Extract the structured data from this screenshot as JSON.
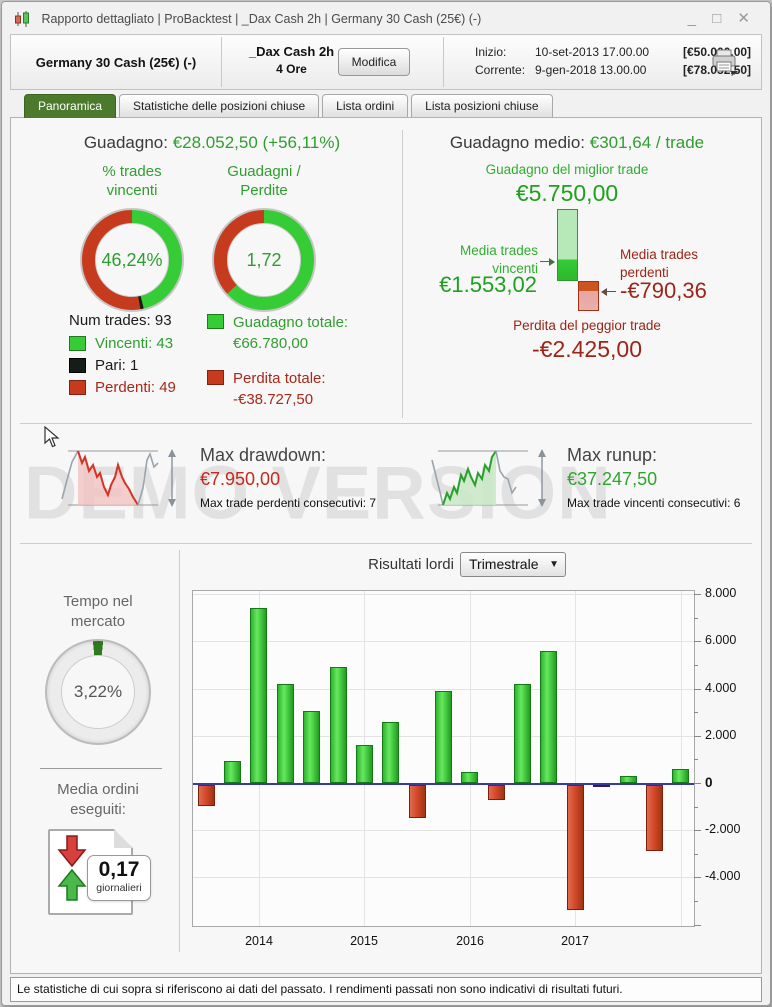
{
  "window": {
    "title": "Rapporto dettagliato  |  ProBacktest  |  _Dax Cash 2h  |  Germany 30 Cash (25€) (-)",
    "minimize": "_",
    "maximize": "□",
    "close": "✕"
  },
  "header": {
    "instrument": "Germany 30 Cash (25€) (-)",
    "system_name": "_Dax Cash 2h",
    "timeframe": "4 Ore",
    "modify_label": "Modifica",
    "inizio_label": "Inizio:",
    "inizio_date": "10-set-2013 17.00.00",
    "inizio_value": "[€50.000,00]",
    "corrente_label": "Corrente:",
    "corrente_date": "9-gen-2018 13.00.00",
    "corrente_value": "[€78.052,50]",
    "printer_icon": "printer-icon"
  },
  "tabs": [
    {
      "label": "Panoramica",
      "active": true
    },
    {
      "label": "Statistiche delle posizioni chiuse",
      "active": false
    },
    {
      "label": "Lista ordini",
      "active": false
    },
    {
      "label": "Lista posizioni chiuse",
      "active": false
    }
  ],
  "overview": {
    "gain_label": "Guadagno:",
    "gain_value": "€28.052,50 (+56,11%)",
    "donut_win": {
      "title_line1": "% trades",
      "title_line2": "vincenti",
      "value": "46,24%",
      "start_deg": 0,
      "segments": [
        [
          "#35cc35",
          46.24
        ],
        [
          "#161d16",
          1.08
        ],
        [
          "#c63a1e",
          52.68
        ]
      ]
    },
    "donut_ratio": {
      "title_line1": "Guadagni /",
      "title_line2": "Perdite",
      "value": "1,72",
      "start_deg": 0,
      "segments": [
        [
          "#35cc35",
          63.2
        ],
        [
          "#c63a1e",
          36.8
        ]
      ]
    },
    "num_trades": "Num trades: 93",
    "legend": [
      {
        "label": "Vincenti: 43",
        "color": "#35cc35"
      },
      {
        "label": "Pari: 1",
        "color": "#161d16"
      },
      {
        "label": "Perdenti: 49",
        "color": "#c63a1d"
      }
    ],
    "totals": [
      {
        "label": "Guadagno totale:",
        "value": "€66.780,00",
        "color": "#2f9e2f"
      },
      {
        "label": "Perdita totale:",
        "value": "-€38.727,50",
        "color": "#a8281a"
      }
    ]
  },
  "avg_panel": {
    "title_label": "Guadagno medio:",
    "title_value": "€301,64 / trade",
    "best_label": "Guadagno del miglior trade",
    "best_value": "€5.750,00",
    "avg_win_label_line1": "Media trades",
    "avg_win_label_line2": "vincenti",
    "avg_win_value": "€1.553,02",
    "avg_loss_label_line1": "Media trades",
    "avg_loss_label_line2": "perdenti",
    "avg_loss_value": "-€790,36",
    "worst_label": "Perdita del peggior trade",
    "worst_value": "-€2.425,00"
  },
  "drawdown": {
    "label": "Max drawdown:",
    "value": "€7.950,00",
    "sub": "Max trade perdenti consecutivi:  7"
  },
  "runup": {
    "label": "Max runup:",
    "value": "€37.247,50",
    "sub": "Max trade vincenti consecutivi: 6"
  },
  "watermark": "DEMO VERSION",
  "time_in_market": {
    "title_line1": "Tempo nel",
    "title_line2": "mercato",
    "value": "3,22%",
    "start_deg": 354.2,
    "segments": [
      [
        "#2e7a1e",
        3.22
      ],
      [
        "#ececec",
        96.78
      ]
    ]
  },
  "avg_orders": {
    "title_line1": "Media ordini",
    "title_line2": "eseguiti:",
    "value": "0,17",
    "unit": "giornalieri"
  },
  "results": {
    "label": "Risultati lordi",
    "dropdown_value": "Trimestrale",
    "dropdown_arrow": "▼"
  },
  "chart_data": {
    "type": "bar",
    "title": "Risultati lordi (Trimestrale)",
    "x": [
      "2013-T3",
      "2013-T4",
      "2014-T1",
      "2014-T2",
      "2014-T3",
      "2014-T4",
      "2015-T1",
      "2015-T2",
      "2015-T3",
      "2015-T4",
      "2016-T1",
      "2016-T2",
      "2016-T3",
      "2016-T4",
      "2017-T1",
      "2017-T2",
      "2017-T3",
      "2017-T4",
      "2018-T1"
    ],
    "values": [
      -900,
      950,
      7400,
      4200,
      3050,
      4900,
      1600,
      2600,
      -1400,
      3900,
      450,
      -650,
      4200,
      5600,
      -5300,
      -80,
      300,
      -2800,
      600
    ],
    "ylim": [
      -6050,
      8150
    ],
    "yticks": [
      8000,
      6000,
      4000,
      2000,
      0,
      -2000,
      -4000
    ],
    "ytick_labels": [
      "8.000",
      "6.000",
      "4.000",
      "2.000",
      "0",
      "-2.000",
      "-4.000"
    ],
    "minor_tick_step": 1000,
    "year_ticks": [
      {
        "label": "2014",
        "index": 2
      },
      {
        "label": "2015",
        "index": 6
      },
      {
        "label": "2016",
        "index": 10
      },
      {
        "label": "2017",
        "index": 14
      }
    ],
    "extra_gridline_indices": [
      18
    ],
    "colors": {
      "positive": "#2fbf2f",
      "negative": "#cc4428",
      "zero_line": "#3a3aa5"
    },
    "color_overrides": {
      "15": "#5c2a66"
    },
    "grid": true,
    "legend_position": "none",
    "ylabel_side": "right"
  },
  "footer": "Le statistiche di cui sopra si riferiscono ai dati del passato. I rendimenti passati non sono indicativi di risultati futuri."
}
